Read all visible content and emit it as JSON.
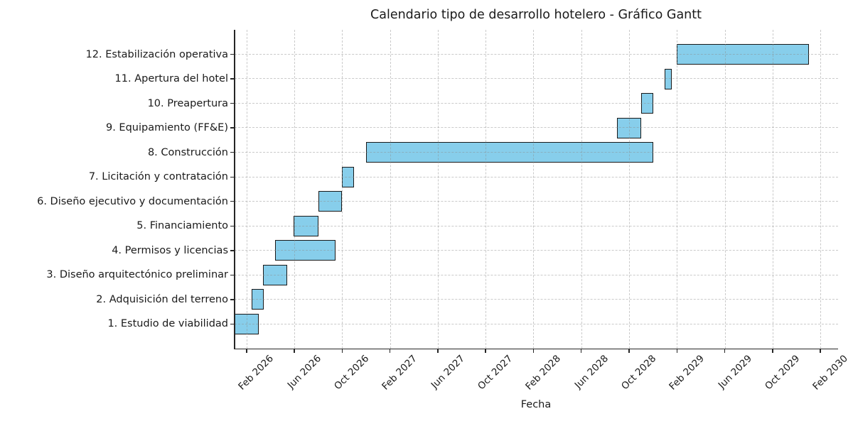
{
  "chart_data": {
    "type": "bar",
    "variant": "gantt-horizontal",
    "title": "Calendario tipo de desarrollo hotelero - Gráfico Gantt",
    "xlabel": "Fecha",
    "ylabel": "",
    "grid": true,
    "legend": false,
    "x_axis": {
      "unit": "months_from_2026-01-01",
      "xlim": [
        0,
        50.48
      ],
      "tick_rotation_deg": 45,
      "ticks": [
        {
          "month": 1,
          "label": "Feb 2026"
        },
        {
          "month": 5,
          "label": "Jun 2026"
        },
        {
          "month": 9,
          "label": "Oct 2026"
        },
        {
          "month": 13,
          "label": "Feb 2027"
        },
        {
          "month": 17,
          "label": "Jun 2027"
        },
        {
          "month": 21,
          "label": "Oct 2027"
        },
        {
          "month": 25,
          "label": "Feb 2028"
        },
        {
          "month": 29,
          "label": "Jun 2028"
        },
        {
          "month": 33,
          "label": "Oct 2028"
        },
        {
          "month": 37,
          "label": "Feb 2029"
        },
        {
          "month": 41,
          "label": "Jun 2029"
        },
        {
          "month": 45,
          "label": "Oct 2029"
        },
        {
          "month": 49,
          "label": "Feb 2030"
        }
      ]
    },
    "tasks": [
      {
        "label": "1. Estudio de viabilidad",
        "start_month": 0.0,
        "end_month": 2.0,
        "approx_start": "2026-01-01",
        "approx_end": "2026-03-01"
      },
      {
        "label": "2. Adquisición del terreno",
        "start_month": 1.45,
        "end_month": 2.45,
        "approx_start": "2026-02-14",
        "approx_end": "2026-03-15"
      },
      {
        "label": "3. Diseño arquitectónico preliminar",
        "start_month": 2.4,
        "end_month": 4.4,
        "approx_start": "2026-03-13",
        "approx_end": "2026-05-13"
      },
      {
        "label": "4. Permisos y licencias",
        "start_month": 3.4,
        "end_month": 8.45,
        "approx_start": "2026-04-13",
        "approx_end": "2026-09-14"
      },
      {
        "label": "5. Financiamiento",
        "start_month": 4.95,
        "end_month": 7.0,
        "approx_start": "2026-05-30",
        "approx_end": "2026-08-01"
      },
      {
        "label": "6. Diseño ejecutivo y documentación",
        "start_month": 7.0,
        "end_month": 9.0,
        "approx_start": "2026-08-01",
        "approx_end": "2026-10-01"
      },
      {
        "label": "7. Licitación y contratación",
        "start_month": 9.0,
        "end_month": 10.0,
        "approx_start": "2026-10-01",
        "approx_end": "2026-11-01"
      },
      {
        "label": "8. Construcción",
        "start_month": 11.0,
        "end_month": 35.0,
        "approx_start": "2026-12-01",
        "approx_end": "2028-12-01"
      },
      {
        "label": "9. Equipamiento (FF&E)",
        "start_month": 32.0,
        "end_month": 34.0,
        "approx_start": "2028-09-01",
        "approx_end": "2028-11-01"
      },
      {
        "label": "10. Preapertura",
        "start_month": 34.0,
        "end_month": 35.05,
        "approx_start": "2028-11-01",
        "approx_end": "2028-12-02"
      },
      {
        "label": "11. Apertura del hotel",
        "start_month": 36.0,
        "end_month": 36.55,
        "approx_start": "2029-01-01",
        "approx_end": "2029-01-17"
      },
      {
        "label": "12. Estabilización operativa",
        "start_month": 37.0,
        "end_month": 48.05,
        "approx_start": "2029-02-01",
        "approx_end": "2030-01-02"
      }
    ],
    "style": {
      "bar_fill": "#87CEEB",
      "bar_edge": "#191919",
      "grid_color": "#8c8c8c",
      "axis_color": "#262626",
      "text_color": "#1a1a1a",
      "background": "#ffffff"
    }
  }
}
